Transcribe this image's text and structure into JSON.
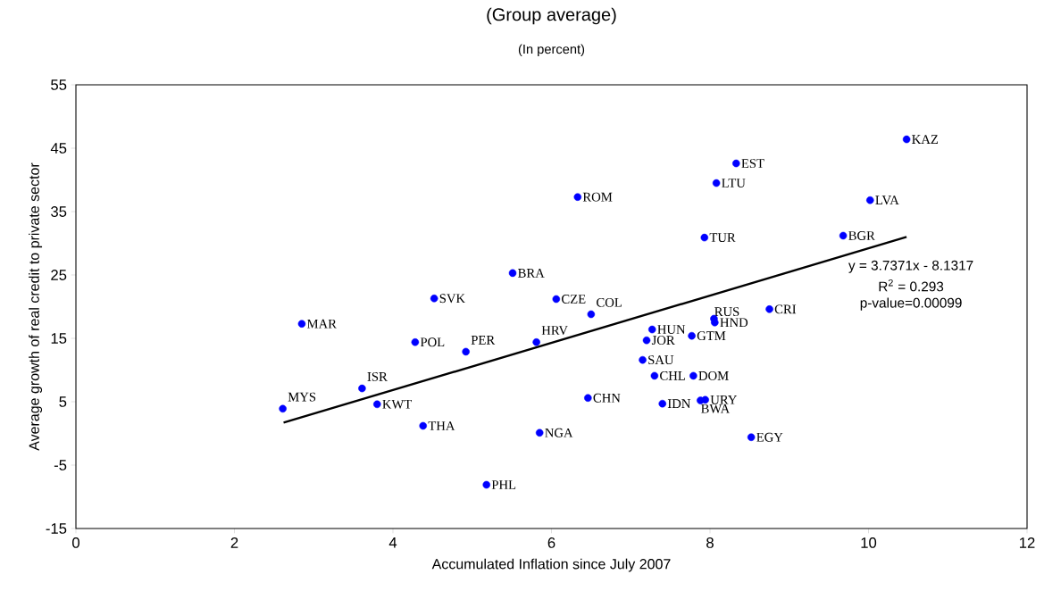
{
  "chart_data": {
    "type": "scatter",
    "title": "(Group average)",
    "subtitle": "(In percent)",
    "xlabel": "Accumulated Inflation since July 2007",
    "ylabel": "Average growth of real credit to private sector",
    "xlim": [
      0,
      12
    ],
    "xticks": [
      0,
      2,
      4,
      6,
      8,
      10,
      12
    ],
    "ylim": [
      -15,
      55
    ],
    "yticks": [
      -15,
      -5,
      5,
      15,
      25,
      35,
      45,
      55
    ],
    "series": [
      {
        "color": "#0000ff",
        "marker": "circle",
        "x": [
          2.61,
          2.85,
          3.61,
          3.8,
          4.28,
          4.38,
          4.52,
          4.92,
          5.51,
          5.18,
          5.81,
          5.85,
          6.06,
          6.33,
          6.46,
          6.5,
          7.27,
          7.2,
          7.15,
          7.3,
          7.4,
          7.77,
          7.79,
          7.93,
          7.94,
          7.88,
          8.08,
          8.06,
          8.05,
          8.33,
          8.52,
          8.75,
          9.68,
          10.02,
          10.48
        ],
        "values": [
          3.9,
          17.3,
          7.1,
          4.6,
          14.4,
          1.2,
          21.3,
          12.9,
          25.3,
          -8.1,
          14.4,
          0.1,
          21.2,
          37.3,
          5.6,
          18.8,
          16.4,
          14.7,
          11.6,
          9.1,
          4.7,
          15.4,
          9.1,
          30.9,
          5.3,
          5.2,
          39.5,
          17.5,
          18.1,
          42.6,
          -0.6,
          19.6,
          31.2,
          36.8,
          46.4
        ]
      },
      {
        "type": "line",
        "color": "#000000",
        "x": [
          2.62,
          10.48
        ],
        "values": [
          1.7,
          31.0
        ]
      }
    ],
    "annotations": [
      {
        "text": "MYS",
        "x": 2.61,
        "y": 3.9
      },
      {
        "text": "MAR",
        "x": 2.85,
        "y": 17.3
      },
      {
        "text": "ISR",
        "x": 3.61,
        "y": 7.1
      },
      {
        "text": "KWT",
        "x": 3.8,
        "y": 4.6
      },
      {
        "text": "POL",
        "x": 4.28,
        "y": 14.4
      },
      {
        "text": "THA",
        "x": 4.38,
        "y": 1.2
      },
      {
        "text": "SVK",
        "x": 4.52,
        "y": 21.3
      },
      {
        "text": "PER",
        "x": 4.92,
        "y": 12.9
      },
      {
        "text": "BRA",
        "x": 5.51,
        "y": 25.3
      },
      {
        "text": "PHL",
        "x": 5.18,
        "y": -8.1
      },
      {
        "text": "HRV",
        "x": 5.81,
        "y": 14.4
      },
      {
        "text": "NGA",
        "x": 5.85,
        "y": 0.1
      },
      {
        "text": "CZE",
        "x": 6.06,
        "y": 21.2
      },
      {
        "text": "ROM",
        "x": 6.33,
        "y": 37.3
      },
      {
        "text": "CHN",
        "x": 6.46,
        "y": 5.6
      },
      {
        "text": "COL",
        "x": 6.5,
        "y": 18.8
      },
      {
        "text": "HUN",
        "x": 7.27,
        "y": 16.4
      },
      {
        "text": "JOR",
        "x": 7.2,
        "y": 14.7
      },
      {
        "text": "SAU",
        "x": 7.15,
        "y": 11.6
      },
      {
        "text": "CHL",
        "x": 7.3,
        "y": 9.1
      },
      {
        "text": "IDN",
        "x": 7.4,
        "y": 4.7
      },
      {
        "text": "GTM",
        "x": 7.77,
        "y": 15.4
      },
      {
        "text": "DOM",
        "x": 7.79,
        "y": 9.1
      },
      {
        "text": "TUR",
        "x": 7.93,
        "y": 30.9
      },
      {
        "text": "URY",
        "x": 7.94,
        "y": 5.3
      },
      {
        "text": "BWA",
        "x": 7.88,
        "y": 5.2
      },
      {
        "text": "LTU",
        "x": 8.08,
        "y": 39.5
      },
      {
        "text": "HND",
        "x": 8.06,
        "y": 17.5
      },
      {
        "text": "RUS",
        "x": 8.05,
        "y": 18.1
      },
      {
        "text": "EST",
        "x": 8.33,
        "y": 42.6
      },
      {
        "text": "EGY",
        "x": 8.52,
        "y": -0.6
      },
      {
        "text": "CRI",
        "x": 8.75,
        "y": 19.6
      },
      {
        "text": "BGR",
        "x": 9.68,
        "y": 31.2
      },
      {
        "text": "LVA",
        "x": 10.02,
        "y": 36.8
      },
      {
        "text": "KAZ",
        "x": 10.48,
        "y": 46.4
      },
      "y = 3.7371x - 8.1317",
      "R$^{2}$ = 0.293",
      "p-value=0.00099"
    ]
  }
}
